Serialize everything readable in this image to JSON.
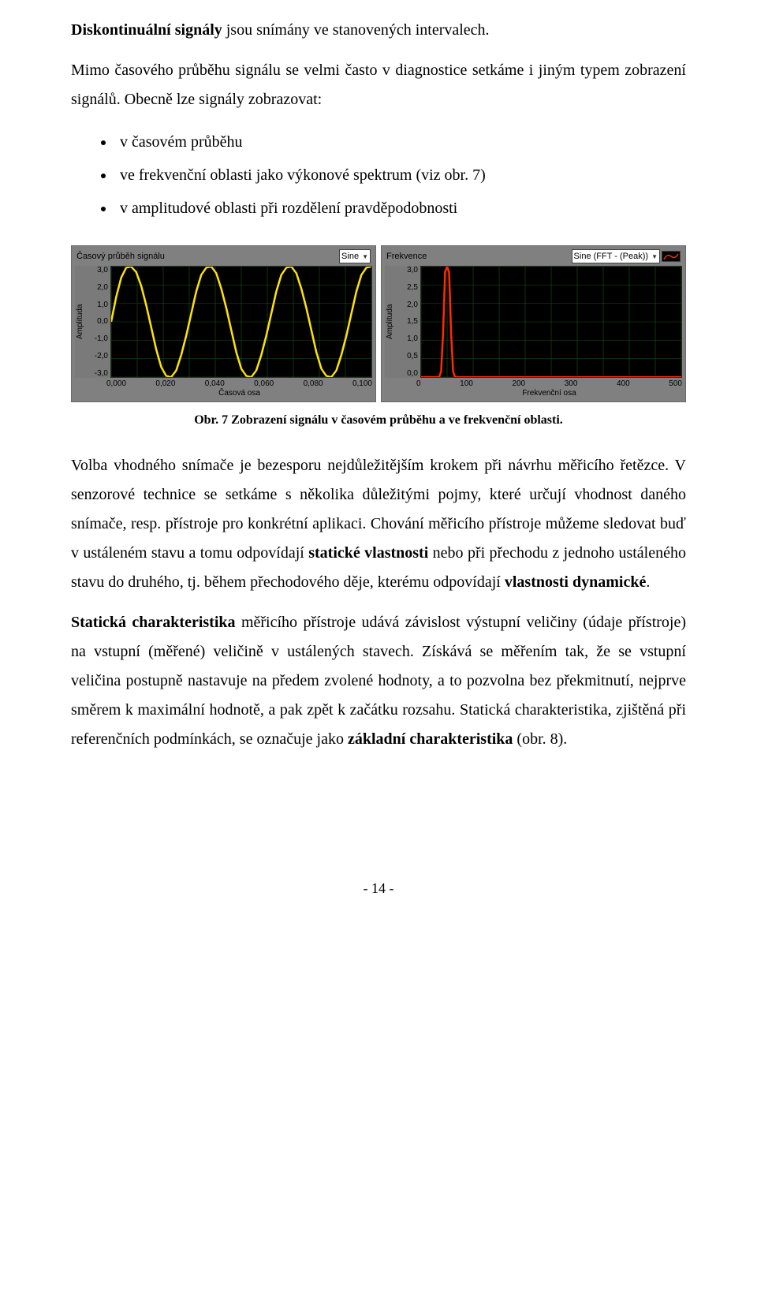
{
  "para1": {
    "bold_lead": "Diskontinuální signály",
    "rest": " jsou snímány ve stanovených intervalech."
  },
  "para2": "Mimo časového průběhu signálu se velmi často v diagnostice setkáme i jiným typem zobrazení signálů. Obecně lze signály zobrazovat:",
  "bullets": [
    "v časovém průběhu",
    "ve frekvenční oblasti jako výkonové spektrum (viz obr. 7)",
    "v amplitudové oblasti při rozdělení pravděpodobnosti"
  ],
  "fig": {
    "caption": "Obr. 7 Zobrazení signálu v časovém průběhu a ve frekvenční oblasti.",
    "panel_bg": "#808080",
    "plot_bg": "#000000",
    "grid_color": "#145214",
    "left": {
      "title": "Časový průběh signálu",
      "combo": "Sine",
      "ylabel": "Amplituda",
      "xlabel": "Časová osa",
      "yticks": [
        "3,0",
        "2,0",
        "1,0",
        "0,0",
        "-1,0",
        "-2,0",
        "-3,0"
      ],
      "xticks": [
        "0,000",
        "0,020",
        "0,040",
        "0,060",
        "0,080",
        "0,100"
      ],
      "color": "#ffe400",
      "type": "line",
      "points": [
        [
          0,
          0
        ],
        [
          5,
          45
        ],
        [
          10,
          80
        ],
        [
          15,
          98
        ],
        [
          20,
          100
        ],
        [
          25,
          90
        ],
        [
          30,
          65
        ],
        [
          35,
          30
        ],
        [
          40,
          -10
        ],
        [
          45,
          -50
        ],
        [
          50,
          -82
        ],
        [
          55,
          -98
        ],
        [
          60,
          -100
        ],
        [
          65,
          -88
        ],
        [
          70,
          -60
        ],
        [
          75,
          -25
        ],
        [
          80,
          15
        ],
        [
          85,
          55
        ],
        [
          90,
          85
        ],
        [
          95,
          98
        ],
        [
          100,
          100
        ],
        [
          105,
          88
        ],
        [
          110,
          60
        ],
        [
          115,
          25
        ],
        [
          120,
          -15
        ],
        [
          125,
          -55
        ],
        [
          130,
          -85
        ],
        [
          135,
          -98
        ],
        [
          140,
          -100
        ],
        [
          145,
          -88
        ],
        [
          150,
          -60
        ],
        [
          155,
          -25
        ],
        [
          160,
          15
        ],
        [
          165,
          55
        ],
        [
          170,
          85
        ],
        [
          175,
          98
        ],
        [
          180,
          100
        ],
        [
          185,
          88
        ],
        [
          190,
          60
        ],
        [
          195,
          25
        ],
        [
          200,
          -15
        ],
        [
          205,
          -55
        ],
        [
          210,
          -85
        ],
        [
          215,
          -98
        ],
        [
          220,
          -100
        ],
        [
          225,
          -88
        ],
        [
          230,
          -60
        ],
        [
          235,
          -25
        ],
        [
          240,
          15
        ],
        [
          245,
          55
        ],
        [
          250,
          85
        ],
        [
          255,
          98
        ],
        [
          260,
          100
        ]
      ],
      "ylim": [
        -3,
        3
      ],
      "xlim": [
        0,
        0.1
      ]
    },
    "right": {
      "title": "Frekvence",
      "combo": "Sine (FFT - (Peak))",
      "ylabel": "Amplituda",
      "xlabel": "Frekvenční osa",
      "yticks": [
        "3,0",
        "2,5",
        "2,0",
        "1,5",
        "1,0",
        "0,5",
        "0,0"
      ],
      "xticks": [
        "0",
        "100",
        "200",
        "300",
        "400",
        "500"
      ],
      "color": "#ff2a00",
      "type": "line",
      "points": [
        [
          0,
          0
        ],
        [
          18,
          0
        ],
        [
          20,
          5
        ],
        [
          22,
          40
        ],
        [
          24,
          95
        ],
        [
          26,
          100
        ],
        [
          28,
          95
        ],
        [
          30,
          40
        ],
        [
          32,
          5
        ],
        [
          34,
          0
        ],
        [
          260,
          0
        ]
      ],
      "ylim": [
        0,
        3
      ],
      "xlim": [
        0,
        500
      ]
    }
  },
  "para3_parts": {
    "a": "Volba vhodného snímače je bezesporu nejdůležitějším krokem při návrhu měřicího řetězce. V senzorové technice se setkáme s několika důležitými pojmy, které určují vhodnost daného snímače, resp. přístroje pro konkrétní aplikaci. Chování měřicího přístroje můžeme sledovat buď v ustáleném stavu a tomu odpovídají ",
    "b_bold": "statické vlastnosti",
    "c": " nebo při přechodu z jednoho ustáleného stavu do druhého, tj. během přechodového děje, kterému odpovídají ",
    "d_bold": "vlastnosti dynamické",
    "e": "."
  },
  "para4_parts": {
    "a_bold": "Statická charakteristika",
    "b": " měřicího přístroje udává závislost výstupní veličiny (údaje přístroje) na vstupní (měřené) veličině v ustálených stavech. Získává se měřením tak, že se vstupní veličina postupně nastavuje na předem zvolené hodnoty, a to pozvolna bez překmitnutí, nejprve směrem k maximální hodnotě, a pak zpět k začátku rozsahu. Statická charakteristika, zjištěná při referenčních podmínkách, se označuje jako ",
    "c_bold": "základní charakteristika",
    "d": " (obr. 8)."
  },
  "pagenum": "- 14 -"
}
